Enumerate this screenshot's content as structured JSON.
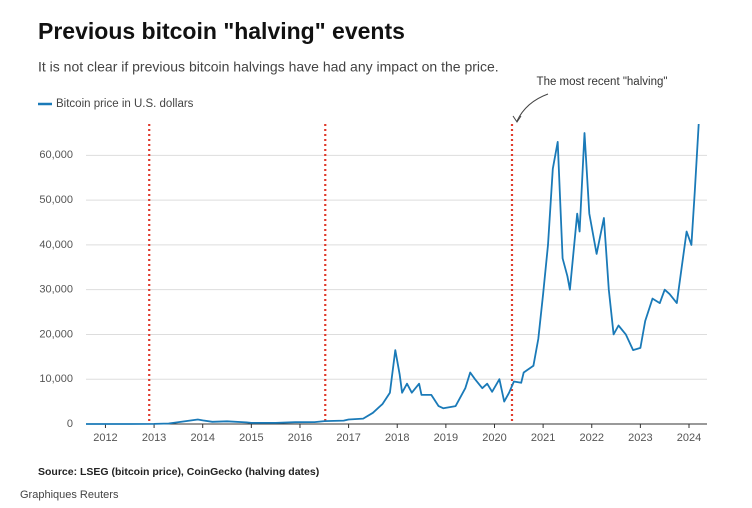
{
  "chart_data": {
    "type": "line",
    "title": "Previous bitcoin \"halving\" events",
    "subtitle": "It is not clear if previous bitcoin halvings have had any impact on the price.",
    "annotation": "The most recent \"halving\"",
    "source": "Source: LSEG (bitcoin price), CoinGecko (halving dates)",
    "credit": "Graphiques Reuters",
    "x": [
      2011.6,
      2012.0,
      2012.5,
      2013.0,
      2013.3,
      2013.9,
      2014.0,
      2014.2,
      2014.5,
      2014.9,
      2015.0,
      2015.5,
      2015.9,
      2016.3,
      2016.5,
      2016.9,
      2017.0,
      2017.3,
      2017.5,
      2017.7,
      2017.85,
      2017.96,
      2018.05,
      2018.1,
      2018.2,
      2018.3,
      2018.45,
      2018.5,
      2018.7,
      2018.85,
      2018.95,
      2019.2,
      2019.4,
      2019.5,
      2019.6,
      2019.75,
      2019.85,
      2019.95,
      2020.1,
      2020.2,
      2020.3,
      2020.4,
      2020.55,
      2020.6,
      2020.8,
      2020.9,
      2021.0,
      2021.1,
      2021.2,
      2021.3,
      2021.4,
      2021.5,
      2021.55,
      2021.7,
      2021.75,
      2021.85,
      2021.95,
      2022.1,
      2022.25,
      2022.35,
      2022.45,
      2022.55,
      2022.7,
      2022.85,
      2023.0,
      2023.1,
      2023.25,
      2023.4,
      2023.5,
      2023.6,
      2023.75,
      2023.85,
      2023.95,
      2024.05,
      2024.12,
      2024.2
    ],
    "series": [
      {
        "name": "Bitcoin price in U.S. dollars",
        "color": "#1a7ab8",
        "values": [
          10,
          5,
          7,
          13,
          120,
          1000,
          800,
          500,
          600,
          350,
          250,
          250,
          400,
          430,
          650,
          750,
          1000,
          1200,
          2500,
          4500,
          7000,
          16500,
          11000,
          7000,
          9000,
          7000,
          9000,
          6500,
          6500,
          4000,
          3500,
          4000,
          8000,
          11500,
          10000,
          8000,
          9000,
          7200,
          10000,
          5000,
          7000,
          9500,
          9200,
          11500,
          13000,
          19000,
          29000,
          40000,
          57000,
          63000,
          37000,
          33000,
          30000,
          47000,
          43000,
          65000,
          47000,
          38000,
          46000,
          30000,
          20000,
          22000,
          20000,
          16500,
          17000,
          23000,
          28000,
          27000,
          30000,
          29000,
          27000,
          35000,
          43000,
          40000,
          52000,
          67000
        ]
      }
    ],
    "halvings": [
      2012.9,
      2016.52,
      2020.36
    ],
    "halving_color": "#e03a2c",
    "xlim": [
      2011.6,
      2024.37
    ],
    "xticks": [
      2012,
      2013,
      2014,
      2015,
      2016,
      2017,
      2018,
      2019,
      2020,
      2021,
      2022,
      2023,
      2024
    ],
    "ylim": [
      0,
      67000
    ],
    "yticks": [
      0,
      {
        "value": 10000,
        "label": "10,000"
      },
      {
        "value": 20000,
        "label": "20,000"
      },
      {
        "value": 30000,
        "label": "30,000"
      },
      {
        "value": 40000,
        "label": "40,000"
      },
      {
        "value": 50000,
        "label": "50,000"
      },
      {
        "value": 60000,
        "label": "60,000"
      }
    ],
    "grid": true
  }
}
